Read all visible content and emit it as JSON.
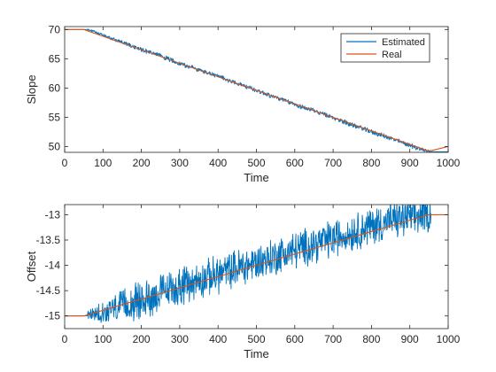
{
  "chart_data": [
    {
      "type": "line",
      "xlabel": "Time",
      "ylabel": "Slope",
      "xlim": [
        0,
        1000
      ],
      "ylim": [
        49,
        70.5
      ],
      "xticks": [
        0,
        100,
        200,
        300,
        400,
        500,
        600,
        700,
        800,
        900,
        1000
      ],
      "yticks": [
        50,
        55,
        60,
        65,
        70
      ],
      "grid": false,
      "legend_position": "top-right",
      "series": [
        {
          "name": "Estimated",
          "color": "#0072BD",
          "x": [
            0,
            50,
            60,
            80,
            100,
            150,
            200,
            250,
            300,
            350,
            400,
            450,
            500,
            550,
            600,
            650,
            700,
            750,
            800,
            850,
            900,
            940,
            950,
            1000
          ],
          "y": [
            70.0,
            70.0,
            70.0,
            69.6,
            69.0,
            67.8,
            66.6,
            65.5,
            64.2,
            63.1,
            62.0,
            60.8,
            59.6,
            58.4,
            57.2,
            56.1,
            54.9,
            53.7,
            52.5,
            51.4,
            50.2,
            49.3,
            49.1,
            49.1
          ],
          "noise": 0.35
        },
        {
          "name": "Real",
          "color": "#D95319",
          "x": [
            0,
            50,
            950,
            1000
          ],
          "y": [
            70,
            70,
            49.2,
            50
          ]
        }
      ]
    },
    {
      "type": "line",
      "xlabel": "Time",
      "ylabel": "Offset",
      "xlim": [
        0,
        1000
      ],
      "ylim": [
        -15.25,
        -12.8
      ],
      "xticks": [
        0,
        100,
        200,
        300,
        400,
        500,
        600,
        700,
        800,
        900,
        1000
      ],
      "yticks": [
        -15,
        -14.5,
        -14,
        -13.5,
        -13
      ],
      "yticklabels": [
        "-15",
        "-14.5",
        "-14",
        "-13.5",
        "-13"
      ],
      "grid": false,
      "series": [
        {
          "name": "Estimated",
          "color": "#0072BD",
          "x": [
            0,
            50,
            60,
            100,
            150,
            200,
            250,
            300,
            350,
            400,
            450,
            500,
            550,
            600,
            650,
            700,
            750,
            800,
            850,
            900,
            950,
            960,
            1000
          ],
          "y": [
            -15.0,
            -15.0,
            -15.0,
            -14.92,
            -14.8,
            -14.7,
            -14.55,
            -14.42,
            -14.3,
            -14.18,
            -14.05,
            -13.95,
            -13.82,
            -13.7,
            -13.58,
            -13.47,
            -13.35,
            -13.22,
            -13.12,
            -13.05,
            -13.0,
            -13.0,
            -13.0
          ],
          "noise": 0.32
        },
        {
          "name": "Real",
          "color": "#D95319",
          "x": [
            0,
            50,
            950,
            1000
          ],
          "y": [
            -15.0,
            -15.0,
            -13.0,
            -13.0
          ]
        }
      ]
    }
  ]
}
